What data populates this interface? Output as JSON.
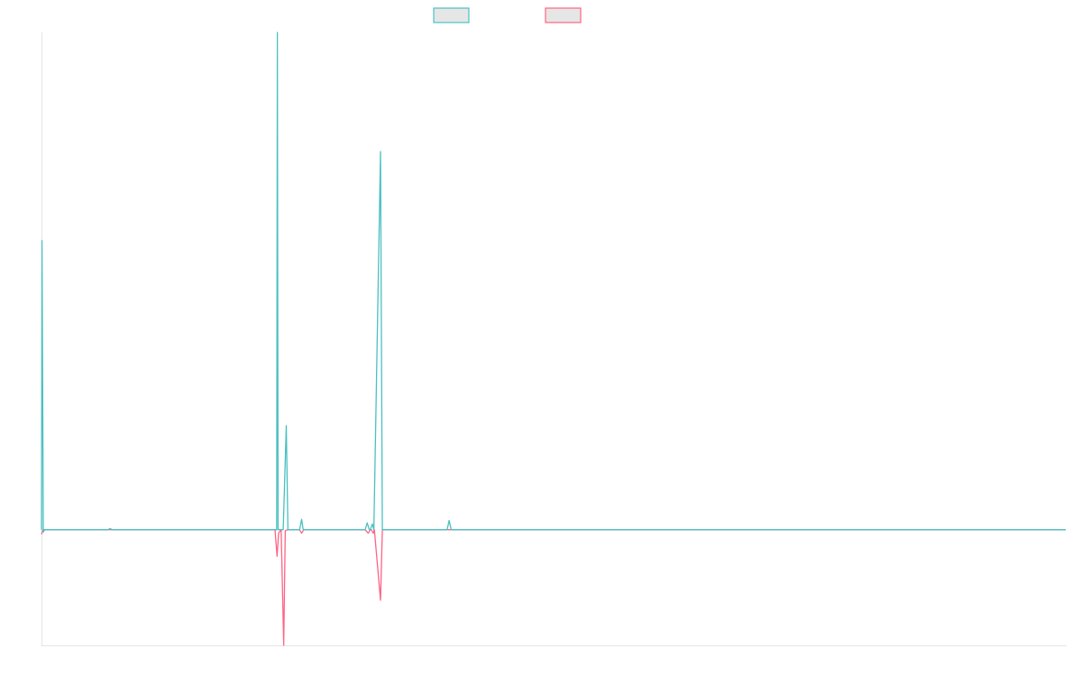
{
  "chart_data": {
    "type": "line",
    "title": "",
    "xlabel": "",
    "ylabel": "",
    "grid": false,
    "legend": {
      "position": "top-center"
    },
    "x_range": [
      0,
      1000
    ],
    "ylim": [
      -10,
      43
    ],
    "series": [
      {
        "name": "",
        "color": "#4bc0c0",
        "fill": "#e6e6e6",
        "points": [
          [
            0,
            0
          ],
          [
            0.5,
            25.0
          ],
          [
            1.8,
            -0.2
          ],
          [
            3.0,
            0
          ],
          [
            5,
            0
          ],
          [
            65,
            0
          ],
          [
            67,
            0.1
          ],
          [
            69,
            0
          ],
          [
            228,
            0
          ],
          [
            229.6,
            0
          ],
          [
            230.3,
            43.0
          ],
          [
            231,
            0
          ],
          [
            236,
            0
          ],
          [
            239,
            9.0
          ],
          [
            240.6,
            0
          ],
          [
            252,
            0
          ],
          [
            254,
            0.9
          ],
          [
            255.5,
            0
          ],
          [
            316,
            0
          ],
          [
            318,
            0.6
          ],
          [
            320,
            0
          ],
          [
            321,
            0
          ],
          [
            323,
            0.5
          ],
          [
            324.5,
            0
          ],
          [
            331,
            32.7
          ],
          [
            332.8,
            0
          ],
          [
            396,
            0
          ],
          [
            398,
            0.8
          ],
          [
            400,
            0
          ],
          [
            1000,
            0
          ]
        ]
      },
      {
        "name": "",
        "color": "#ff6384",
        "fill": "#e6e6e6",
        "points": [
          [
            0,
            -0.4
          ],
          [
            1.5,
            0
          ],
          [
            5,
            0
          ],
          [
            228,
            0
          ],
          [
            230,
            -2.3
          ],
          [
            231.5,
            -0.3
          ],
          [
            234,
            0
          ],
          [
            236.5,
            -10.0
          ],
          [
            238,
            -0.1
          ],
          [
            240,
            0
          ],
          [
            252,
            0
          ],
          [
            254,
            -0.3
          ],
          [
            256,
            0
          ],
          [
            316,
            0
          ],
          [
            319,
            -0.3
          ],
          [
            321,
            0
          ],
          [
            322,
            0
          ],
          [
            324,
            -0.3
          ],
          [
            325,
            0
          ],
          [
            331,
            -6.1
          ],
          [
            332.8,
            0
          ],
          [
            1000,
            0
          ]
        ]
      }
    ]
  }
}
